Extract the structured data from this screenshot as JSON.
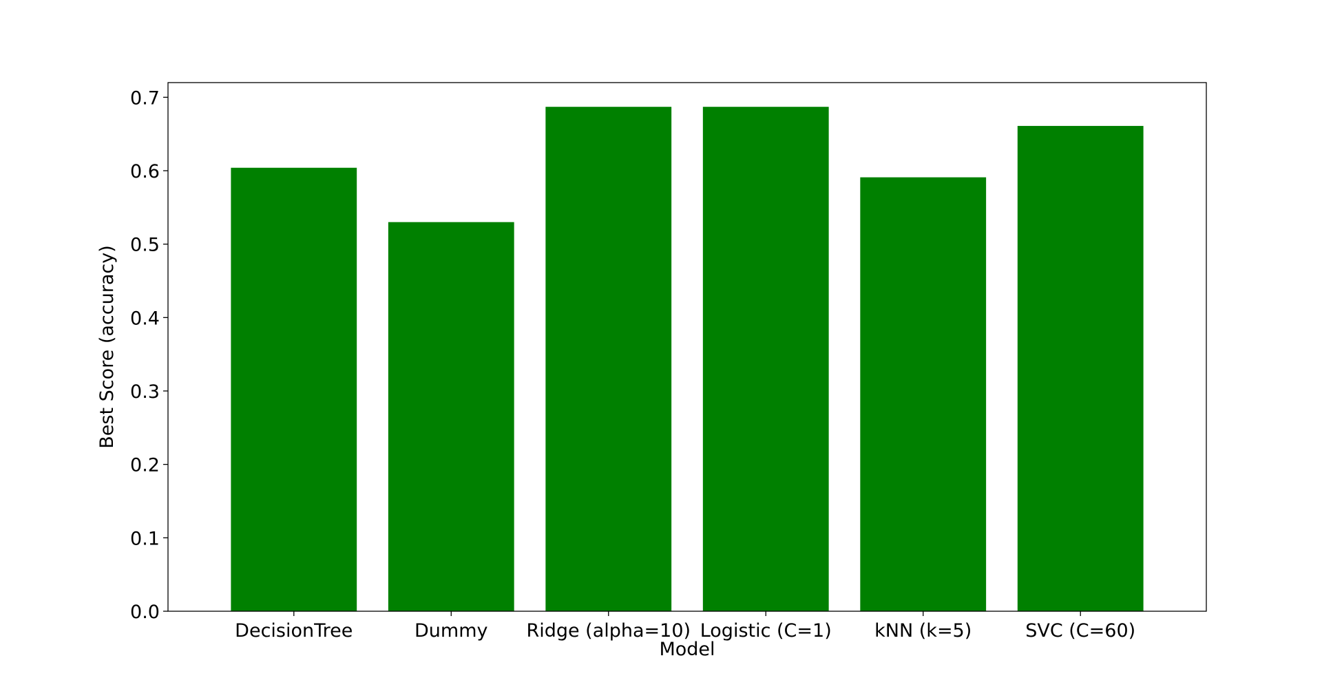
{
  "chart_data": {
    "type": "bar",
    "title": "",
    "xlabel": "Model",
    "ylabel": "Best Score (accuracy)",
    "categories": [
      "DecisionTree",
      "Dummy",
      "Ridge (alpha=10)",
      "Logistic (C=1)",
      "kNN (k=5)",
      "SVC (C=60)"
    ],
    "values": [
      0.604,
      0.53,
      0.687,
      0.687,
      0.591,
      0.661
    ],
    "ylim": [
      0,
      0.72
    ],
    "yticks": [
      "0.0",
      "0.1",
      "0.2",
      "0.3",
      "0.4",
      "0.5",
      "0.6",
      "0.7"
    ],
    "bar_color": "#008000",
    "grid": false,
    "legend": "none"
  }
}
